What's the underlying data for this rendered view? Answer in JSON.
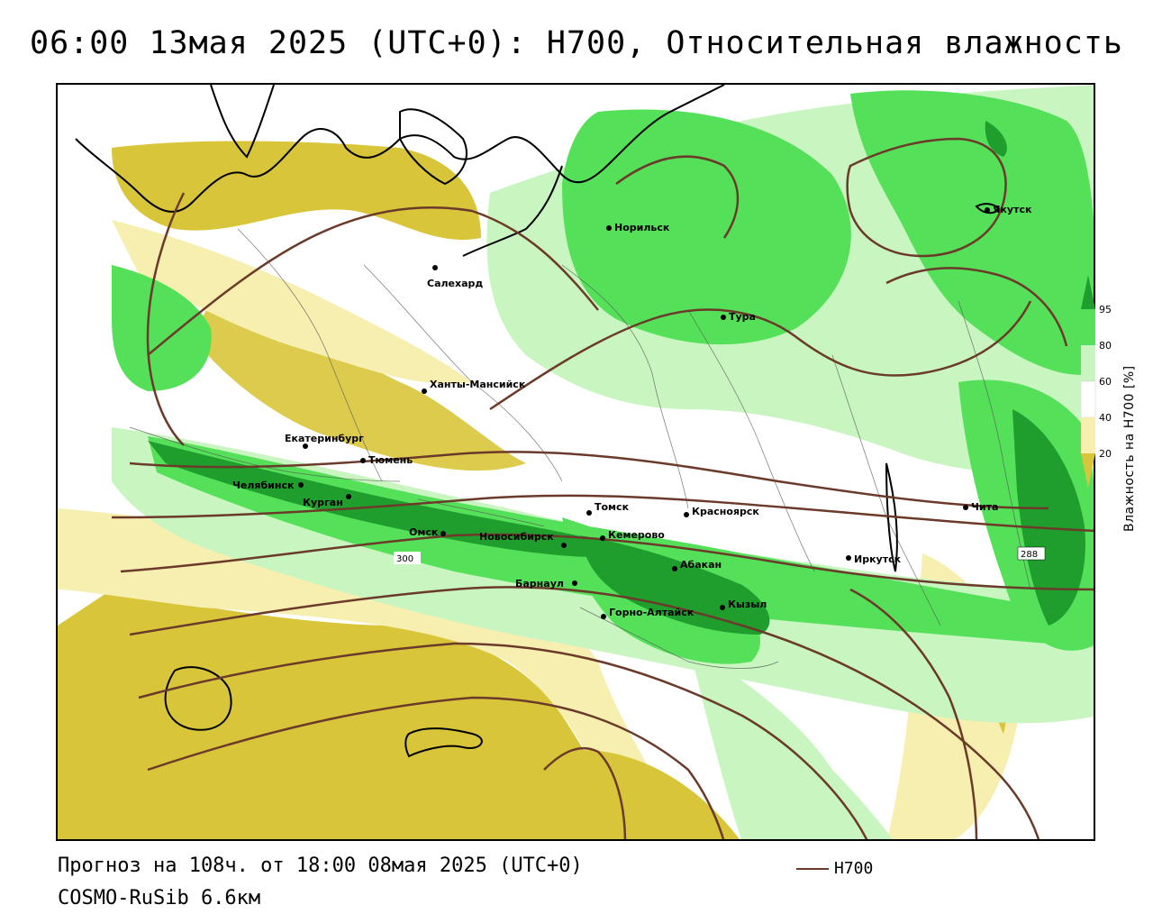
{
  "title": "06:00 13мая 2025 (UTC+0): H700, Относительная влажность",
  "footer": {
    "forecast": "Прогноз на 108ч. от 18:00 08мая 2025 (UTC+0)",
    "model": "COSMO-RuSib 6.6км",
    "contour_legend": "H700"
  },
  "colorbar": {
    "title": "Влажность на H700 [%]",
    "ticks": [
      "95",
      "80",
      "60",
      "40",
      "20"
    ],
    "colors": {
      "c95": "#1f9e2e",
      "c80": "#55e05a",
      "c60": "#c8f5c0",
      "c40": "#ffffff",
      "c20": "#f7efb0",
      "c0": "#d9c53a"
    }
  },
  "contour_labels": [
    "300",
    "288"
  ],
  "cities": [
    {
      "name": "Норильск"
    },
    {
      "name": "Якутск"
    },
    {
      "name": "Салехард"
    },
    {
      "name": "Тура"
    },
    {
      "name": "Ханты-Мансийск"
    },
    {
      "name": "Екатеринбург"
    },
    {
      "name": "Тюмень"
    },
    {
      "name": "Челябинск"
    },
    {
      "name": "Курган"
    },
    {
      "name": "Омск"
    },
    {
      "name": "Новосибирск"
    },
    {
      "name": "Томск"
    },
    {
      "name": "Красноярск"
    },
    {
      "name": "Кемерово"
    },
    {
      "name": "Абакан"
    },
    {
      "name": "Барнаул"
    },
    {
      "name": "Горно-Алтайск"
    },
    {
      "name": "Кызыл"
    },
    {
      "name": "Иркутск"
    },
    {
      "name": "Чита"
    }
  ],
  "colors": {
    "contour": "#6b3a2a",
    "coast": "#000000"
  }
}
